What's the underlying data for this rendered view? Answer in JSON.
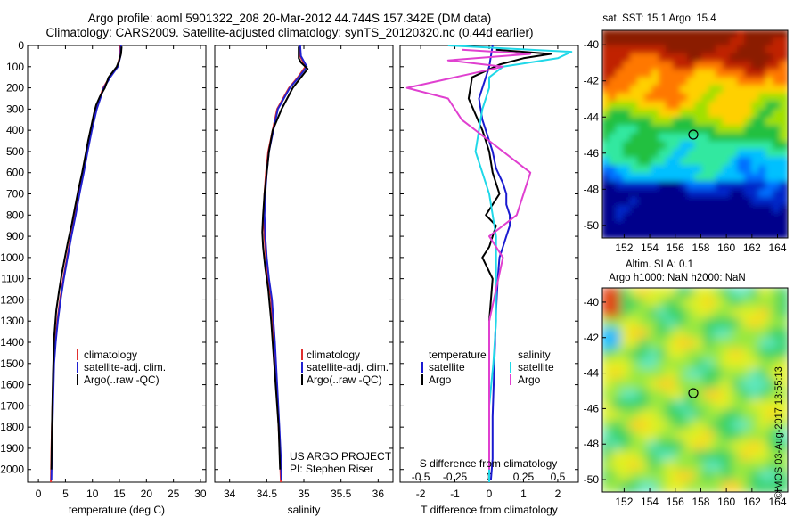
{
  "header": {
    "line1": "Argo profile: aoml 5901322_208 20-Mar-2012 44.744S 157.342E (DM data)",
    "line2": "Climatology: CARS2009. Satellite-adjusted climatology: synTS_20120320.nc (0.44d earlier)"
  },
  "depth_axis": {
    "ticks": [
      0,
      100,
      200,
      300,
      400,
      500,
      600,
      700,
      800,
      900,
      1000,
      1100,
      1200,
      1300,
      1400,
      1500,
      1600,
      1700,
      1800,
      1900,
      2000
    ],
    "range": [
      0,
      2060
    ]
  },
  "chart_data": [
    {
      "type": "line",
      "xlabel": "temperature (deg C)",
      "xlim": [
        -2,
        31
      ],
      "xticks": [
        0,
        5,
        10,
        15,
        20,
        25,
        30
      ],
      "ylim": [
        0,
        2060
      ],
      "legend": {
        "placement": "lower-middle",
        "entries": [
          "climatology",
          "satellite-adj. clim.",
          "Argo(..raw -QC)"
        ]
      },
      "series": [
        {
          "name": "climatology",
          "color": "#e03030",
          "x": [
            15.2,
            15.1,
            14.6,
            13.2,
            12.0,
            10.7,
            9.8,
            9.0,
            8.3,
            7.5,
            6.8,
            6.0,
            5.3,
            4.6,
            4.0,
            3.5,
            3.1,
            2.8,
            2.6,
            2.4,
            2.3
          ],
          "y": [
            0,
            50,
            100,
            150,
            200,
            300,
            400,
            500,
            600,
            700,
            800,
            900,
            1000,
            1100,
            1200,
            1300,
            1400,
            1500,
            1700,
            1900,
            2060
          ]
        },
        {
          "name": "satellite-adj. clim.",
          "color": "#2020d0",
          "x": [
            15.3,
            15.2,
            14.7,
            13.3,
            12.1,
            10.8,
            9.9,
            9.1,
            8.4,
            7.6,
            6.9,
            6.1,
            5.4,
            4.7,
            4.1,
            3.6,
            3.2,
            2.9,
            2.7,
            2.5,
            2.4
          ],
          "y": [
            0,
            50,
            100,
            150,
            200,
            300,
            400,
            500,
            600,
            700,
            800,
            900,
            1000,
            1100,
            1200,
            1300,
            1400,
            1500,
            1700,
            1900,
            2050
          ]
        },
        {
          "name": "Argo(..raw -QC)",
          "color": "#000000",
          "x": [
            15.4,
            15.3,
            14.9,
            14.5,
            13.0,
            12.3,
            11.4,
            10.7,
            10.3,
            9.8,
            9.2,
            8.7,
            8.1,
            7.4,
            6.8,
            6.2,
            5.5,
            4.9,
            4.3,
            3.8,
            3.3,
            2.9,
            2.7,
            2.5,
            2.4
          ],
          "y": [
            5,
            40,
            75,
            100,
            150,
            200,
            240,
            280,
            320,
            380,
            450,
            520,
            600,
            680,
            760,
            840,
            920,
            1000,
            1080,
            1160,
            1250,
            1380,
            1550,
            1800,
            2000
          ]
        }
      ]
    },
    {
      "type": "line",
      "xlabel": "salinity",
      "xlim": [
        33.8,
        36.2
      ],
      "xticks": [
        34,
        34.5,
        35,
        35.5,
        36
      ],
      "xticklabels": [
        "34",
        "34.5",
        "35",
        "35.5",
        "36"
      ],
      "ylim": [
        0,
        2060
      ],
      "legend": {
        "placement": "lower-middle",
        "entries": [
          "climatology",
          "satellite-adj. clim.",
          "Argo(..raw -QC)"
        ]
      },
      "annotation": [
        "US ARGO PROJECT",
        "PI: Stephen Riser"
      ],
      "series": [
        {
          "name": "climatology",
          "color": "#e03030",
          "x": [
            34.94,
            34.95,
            35.02,
            34.92,
            34.8,
            34.64,
            34.58,
            34.52,
            34.49,
            34.47,
            34.46,
            34.47,
            34.49,
            34.52,
            34.56,
            34.6,
            34.63,
            34.66,
            34.68,
            34.69
          ],
          "y": [
            0,
            50,
            100,
            150,
            200,
            300,
            400,
            500,
            600,
            700,
            800,
            900,
            1000,
            1100,
            1200,
            1400,
            1600,
            1800,
            1950,
            2060
          ]
        },
        {
          "name": "satellite-adj. clim.",
          "color": "#2020d0",
          "x": [
            34.95,
            34.96,
            35.04,
            34.93,
            34.81,
            34.65,
            34.59,
            34.53,
            34.5,
            34.48,
            34.47,
            34.48,
            34.5,
            34.53,
            34.57,
            34.61,
            34.64,
            34.67,
            34.69,
            34.7
          ],
          "y": [
            0,
            50,
            100,
            150,
            200,
            300,
            400,
            500,
            600,
            700,
            800,
            900,
            1000,
            1100,
            1200,
            1400,
            1600,
            1800,
            1950,
            2050
          ]
        },
        {
          "name": "Argo(..raw -QC)",
          "color": "#000000",
          "x": [
            34.93,
            34.93,
            34.96,
            35.05,
            34.85,
            34.7,
            34.58,
            34.53,
            34.5,
            34.47,
            34.45,
            34.44,
            34.45,
            34.48,
            34.52,
            34.56,
            34.61,
            34.66,
            34.68
          ],
          "y": [
            5,
            60,
            80,
            110,
            200,
            300,
            400,
            500,
            600,
            700,
            800,
            880,
            950,
            1050,
            1150,
            1300,
            1550,
            1800,
            2000
          ]
        }
      ]
    },
    {
      "type": "line",
      "xlabel": "T difference from climatology",
      "xlabel_top": "S difference from climatology",
      "xlim": [
        -2.6,
        2.6
      ],
      "xticks": [
        -2,
        -1,
        0,
        1,
        2
      ],
      "xticks_top": [
        -0.5,
        -0.25,
        0,
        0.25,
        0.5
      ],
      "ylim": [
        0,
        2060
      ],
      "legend": {
        "placement": "lower",
        "groups": [
          {
            "heading": "temperature",
            "entries": [
              "satellite",
              "Argo"
            ]
          },
          {
            "heading": "salinity",
            "entries": [
              "satellite",
              "Argo"
            ]
          }
        ]
      },
      "series": [
        {
          "name": "temperature satellite",
          "color": "#1a1ad0",
          "x": [
            0.1,
            0.0,
            -0.1,
            -0.3,
            -0.2,
            0.1,
            0.2,
            0.4,
            0.5,
            0.5,
            0.6,
            0.6,
            0.5,
            0.4,
            0.3,
            0.25,
            0.2,
            0.15,
            0.1,
            0.1,
            0.05
          ],
          "y": [
            0,
            100,
            150,
            250,
            350,
            500,
            580,
            650,
            700,
            750,
            800,
            850,
            900,
            950,
            1000,
            1100,
            1250,
            1500,
            1750,
            1950,
            2050
          ]
        },
        {
          "name": "temperature Argo",
          "color": "#000000",
          "x": [
            0.2,
            1.8,
            1.0,
            0.3,
            -0.5,
            -0.6,
            -0.2,
            0.0,
            0.1,
            0.3,
            0.1,
            -0.1,
            0.2,
            0.1,
            0.0,
            -0.2,
            0.1,
            0.0,
            0.0
          ],
          "y": [
            20,
            40,
            60,
            90,
            150,
            250,
            400,
            500,
            600,
            700,
            750,
            800,
            850,
            900,
            950,
            1000,
            1100,
            1300,
            2000
          ]
        },
        {
          "name": "salinity satellite",
          "color": "#20d8e8",
          "x": [
            -0.3,
            0.6,
            0.5,
            0.1,
            0.0,
            0.0,
            -0.05,
            -0.1,
            0.0,
            0.05,
            0.05,
            0.05,
            0.03,
            0.0,
            0.0,
            0.0
          ],
          "y": [
            0,
            30,
            60,
            100,
            150,
            200,
            300,
            500,
            700,
            900,
            1100,
            1300,
            1500,
            1700,
            1900,
            2060
          ]
        },
        {
          "name": "salinity Argo",
          "color": "#e040d0",
          "x": [
            -0.2,
            0.3,
            -0.3,
            0.1,
            -0.6,
            -0.3,
            -0.2,
            0.0,
            0.3,
            0.2,
            0.0,
            0.1,
            0.0,
            0.0
          ],
          "y": [
            20,
            40,
            70,
            100,
            200,
            250,
            350,
            450,
            600,
            800,
            900,
            1000,
            1300,
            2000
          ]
        }
      ]
    }
  ],
  "maps": [
    {
      "title_lines": [
        "sat. SST: 15.1  Argo: 15.4"
      ],
      "xticks": [
        "152",
        "154",
        "156",
        "158",
        "160",
        "162",
        "164"
      ],
      "yticks": [
        "-40",
        "-42",
        "-44",
        "-46",
        "-48",
        "-50"
      ],
      "colors": [
        "#00008b",
        "#0028c8",
        "#0070ff",
        "#00c0ff",
        "#30e8a0",
        "#20c040",
        "#a0e000",
        "#ffd000",
        "#ff7800",
        "#c02000",
        "#8b1a00"
      ]
    },
    {
      "title_lines": [
        "Altim. SLA: 0.1",
        "Argo h1000: NaN h2000: NaN"
      ],
      "xticks": [
        "152",
        "154",
        "156",
        "158",
        "160",
        "162",
        "164"
      ],
      "yticks": [
        "-40",
        "-42",
        "-44",
        "-46",
        "-48",
        "-50"
      ],
      "colors": [
        "#00b8ff",
        "#60e8c0",
        "#30d060",
        "#98e840",
        "#e0f020",
        "#ffd020",
        "#ff9020",
        "#f06010",
        "#e04010"
      ]
    }
  ],
  "credit": "©IMOS 03-Aug-2017 13:55:13"
}
